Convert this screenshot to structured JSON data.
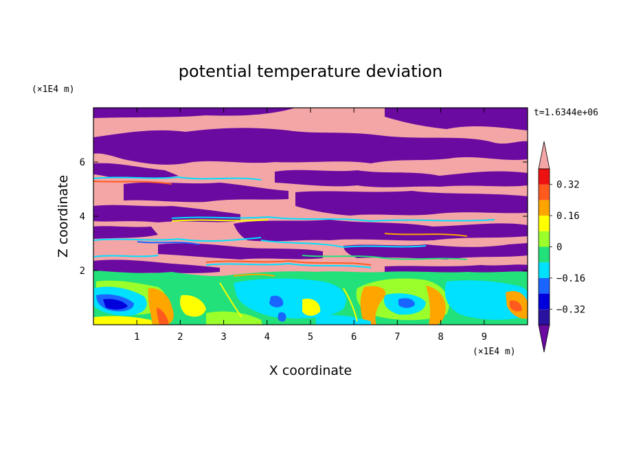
{
  "chart_data": {
    "type": "heatmap",
    "title": "potential temperature deviation",
    "xlabel": "X coordinate",
    "ylabel": "Z coordinate",
    "x_scale_label": "(×1E4 m)",
    "y_scale_label": "(×1E4 m)",
    "time_label": "t=1.6344e+06",
    "x_ticks": [
      "1",
      "2",
      "3",
      "4",
      "5",
      "6",
      "7",
      "8",
      "9"
    ],
    "y_ticks": [
      "2",
      "4",
      "6"
    ],
    "xlim": [
      0,
      10
    ],
    "ylim": [
      0,
      8
    ],
    "colorbar": {
      "tick_labels": [
        "0.32",
        "0.16",
        "0",
        "−0.16",
        "−0.32"
      ],
      "tick_values": [
        0.32,
        0.16,
        0,
        -0.16,
        -0.32
      ],
      "levels": [
        -0.4,
        -0.32,
        -0.24,
        -0.16,
        -0.08,
        0,
        0.08,
        0.16,
        0.24,
        0.32,
        0.4
      ],
      "colors": [
        "#6a0aa0",
        "#2a12a0",
        "#0000dd",
        "#1a64ff",
        "#00e0ff",
        "#22e07a",
        "#9aff2a",
        "#ffff00",
        "#ffa500",
        "#ff5a1e",
        "#ee1111",
        "#f4a6a6"
      ],
      "extend": "both"
    },
    "field_description": "stratified layers of warm (pink) and cold (purple) air above 2 units with turbulent multi-colored eddies below 2 units"
  }
}
